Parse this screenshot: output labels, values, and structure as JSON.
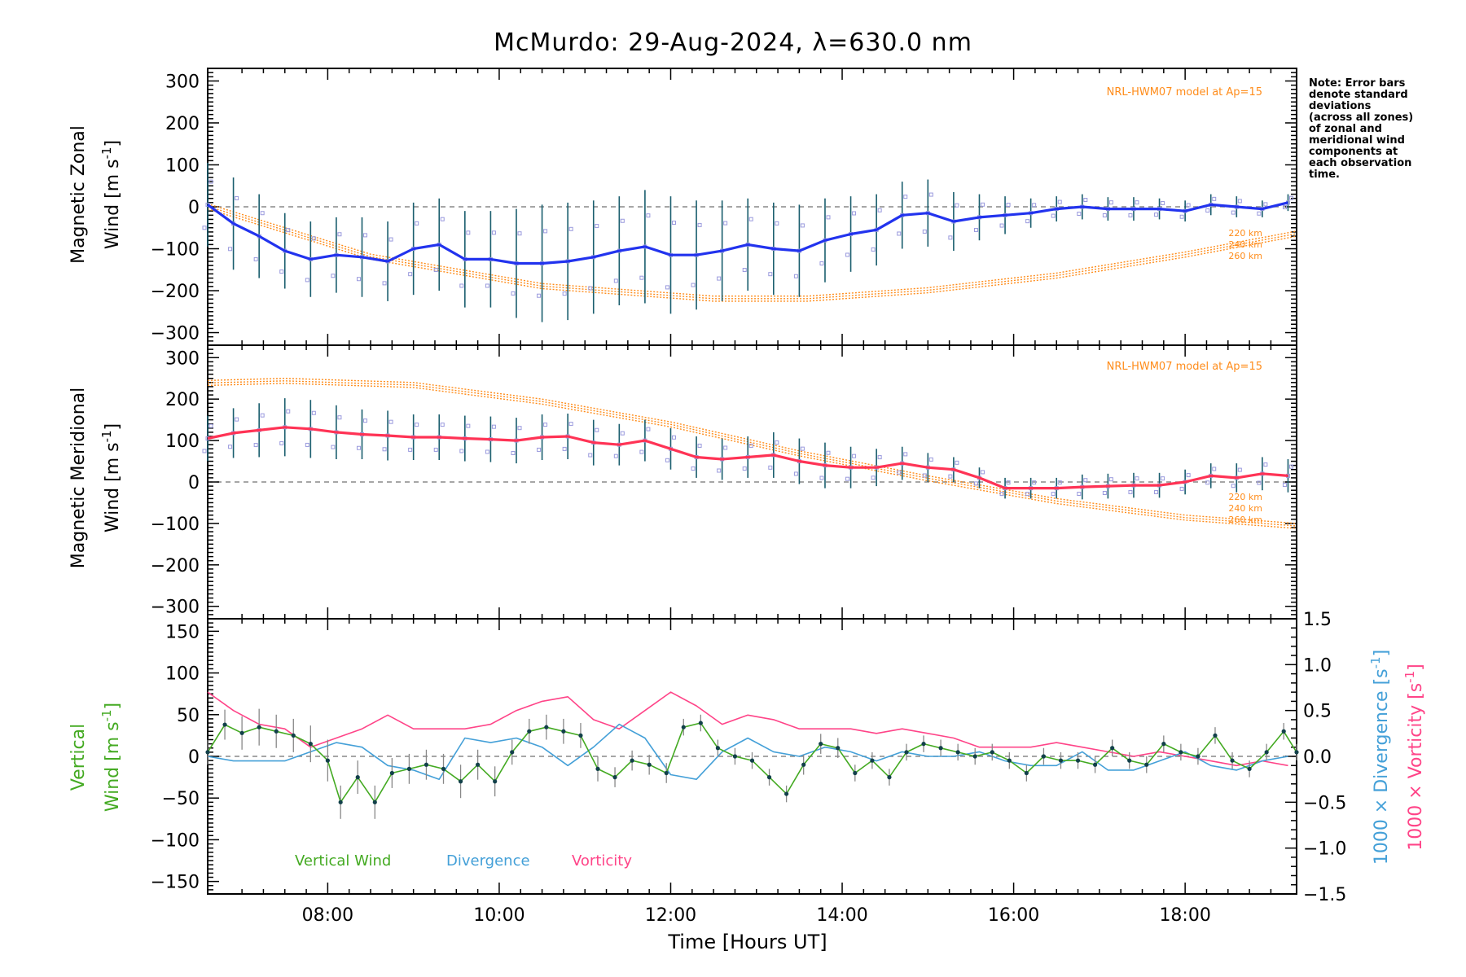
{
  "title": "McMurdo: 29-Aug-2024, λ=630.0 nm",
  "note": [
    "Note: Error bars",
    "denote standard",
    "deviations",
    "(across all zones)",
    "of zonal and",
    "meridional wind",
    "components at",
    "each observation",
    "time."
  ],
  "xaxis": {
    "label": "Time [Hours UT]",
    "range": [
      6.6,
      19.3
    ],
    "ticks": [
      8,
      10,
      12,
      14,
      16,
      18
    ],
    "tick_labels": [
      "08:00",
      "10:00",
      "12:00",
      "14:00",
      "16:00",
      "18:00"
    ]
  },
  "colors": {
    "zonal": "#2233ee",
    "meridional": "#ff3355",
    "vertical": "#44aa22",
    "divergence": "#44a0d8",
    "vorticity": "#ff4488",
    "model": "#ff8c1a",
    "error_bar": "#1a5e6e",
    "zone_scatter": "#9999dd"
  },
  "panels": {
    "zonal": {
      "ylabel_line1": "Magnetic Zonal",
      "ylabel_line2": "Wind [m s",
      "ylabel_sup": "-1",
      "ylabel_end": "]",
      "yrange": [
        -330,
        330
      ],
      "yticks": [
        -300,
        -200,
        -100,
        0,
        100,
        200,
        300
      ],
      "model_label": "NRL-HWM07 model at Ap=15",
      "alt_labels": [
        "220 km",
        "240 km",
        "260 km"
      ]
    },
    "meridional": {
      "ylabel_line1": "Magnetic Meridional",
      "ylabel_line2": "Wind [m s",
      "ylabel_sup": "-1",
      "ylabel_end": "]",
      "yrange": [
        -330,
        330
      ],
      "yticks": [
        -300,
        -200,
        -100,
        0,
        100,
        200,
        300
      ],
      "model_label": "NRL-HWM07 model at Ap=15",
      "alt_labels": [
        "220 km",
        "240 km",
        "260 km"
      ]
    },
    "vertical": {
      "ylabel_line1": "Vertical",
      "ylabel_line2": "Wind [m s",
      "ylabel_sup": "-1",
      "ylabel_end": "]",
      "yrange": [
        -165,
        165
      ],
      "yticks": [
        -150,
        -100,
        -50,
        0,
        50,
        100,
        150
      ],
      "y2range": [
        -1.5,
        1.5
      ],
      "y2ticks": [
        -1.5,
        -1.0,
        -0.5,
        0.0,
        0.5,
        1.0,
        1.5
      ],
      "y2label_div": "1000 × Divergence [s",
      "y2label_vor": "1000 × Vorticity [s",
      "y2label_sup": "-1",
      "y2label_end": "]",
      "legend": [
        "Vertical Wind",
        "Divergence",
        "Vorticity"
      ]
    }
  },
  "chart_data": {
    "type": "line",
    "title": "McMurdo: 29-Aug-2024, λ=630.0 nm",
    "xlabel": "Time [Hours UT]",
    "series": [
      {
        "name": "Magnetic Zonal Wind",
        "x": [
          6.6,
          6.9,
          7.2,
          7.5,
          7.8,
          8.1,
          8.4,
          8.7,
          9.0,
          9.3,
          9.6,
          9.9,
          10.2,
          10.5,
          10.8,
          11.1,
          11.4,
          11.7,
          12.0,
          12.3,
          12.6,
          12.9,
          13.2,
          13.5,
          13.8,
          14.1,
          14.4,
          14.7,
          15.0,
          15.3,
          15.6,
          15.9,
          16.2,
          16.5,
          16.8,
          17.1,
          17.4,
          17.7,
          18.0,
          18.3,
          18.6,
          18.9,
          19.2
        ],
        "y": [
          5,
          -40,
          -70,
          -105,
          -125,
          -115,
          -120,
          -130,
          -100,
          -90,
          -125,
          -125,
          -135,
          -135,
          -130,
          -120,
          -105,
          -95,
          -115,
          -115,
          -105,
          -90,
          -100,
          -105,
          -80,
          -65,
          -55,
          -20,
          -15,
          -35,
          -25,
          -20,
          -15,
          -5,
          0,
          -5,
          -5,
          -5,
          -10,
          5,
          0,
          -5,
          10
        ],
        "error": [
          100,
          110,
          100,
          90,
          90,
          90,
          95,
          95,
          110,
          110,
          115,
          115,
          130,
          140,
          140,
          135,
          130,
          135,
          140,
          130,
          120,
          110,
          110,
          110,
          100,
          90,
          85,
          80,
          80,
          70,
          55,
          45,
          35,
          30,
          30,
          28,
          28,
          25,
          25,
          25,
          25,
          20,
          20
        ]
      },
      {
        "name": "Magnetic Meridional Wind",
        "x": [
          6.6,
          6.9,
          7.2,
          7.5,
          7.8,
          8.1,
          8.4,
          8.7,
          9.0,
          9.3,
          9.6,
          9.9,
          10.2,
          10.5,
          10.8,
          11.1,
          11.4,
          11.7,
          12.0,
          12.3,
          12.6,
          12.9,
          13.2,
          13.5,
          13.8,
          14.1,
          14.4,
          14.7,
          15.0,
          15.3,
          15.6,
          15.9,
          16.2,
          16.5,
          16.8,
          17.1,
          17.4,
          17.7,
          18.0,
          18.3,
          18.6,
          18.9,
          19.2
        ],
        "y": [
          105,
          118,
          125,
          132,
          128,
          120,
          115,
          112,
          108,
          108,
          105,
          103,
          100,
          108,
          110,
          95,
          90,
          100,
          80,
          60,
          55,
          60,
          65,
          50,
          40,
          35,
          35,
          45,
          35,
          30,
          10,
          -15,
          -15,
          -15,
          -12,
          -10,
          -8,
          -8,
          0,
          15,
          10,
          20,
          15
        ],
        "error": [
          55,
          60,
          65,
          70,
          70,
          65,
          60,
          60,
          55,
          55,
          55,
          55,
          55,
          55,
          55,
          55,
          50,
          50,
          50,
          50,
          50,
          50,
          55,
          55,
          55,
          50,
          45,
          40,
          35,
          30,
          25,
          25,
          25,
          25,
          30,
          30,
          30,
          30,
          30,
          30,
          35,
          40,
          40
        ]
      },
      {
        "name": "Vertical Wind",
        "x": [
          6.6,
          6.8,
          7.0,
          7.2,
          7.4,
          7.6,
          7.8,
          8.0,
          8.15,
          8.35,
          8.55,
          8.75,
          8.95,
          9.15,
          9.35,
          9.55,
          9.75,
          9.95,
          10.15,
          10.35,
          10.55,
          10.75,
          10.95,
          11.15,
          11.35,
          11.55,
          11.75,
          11.95,
          12.15,
          12.35,
          12.55,
          12.75,
          12.95,
          13.15,
          13.35,
          13.55,
          13.75,
          13.95,
          14.15,
          14.35,
          14.55,
          14.75,
          14.95,
          15.15,
          15.35,
          15.55,
          15.75,
          15.95,
          16.15,
          16.35,
          16.55,
          16.75,
          16.95,
          17.15,
          17.35,
          17.55,
          17.75,
          17.95,
          18.15,
          18.35,
          18.55,
          18.75,
          18.95,
          19.15,
          19.3
        ],
        "y": [
          5,
          38,
          28,
          35,
          30,
          25,
          15,
          -5,
          -55,
          -25,
          -55,
          -20,
          -15,
          -10,
          -15,
          -30,
          -10,
          -30,
          5,
          30,
          35,
          30,
          25,
          -15,
          -25,
          -5,
          -10,
          -20,
          35,
          40,
          10,
          0,
          -5,
          -25,
          -45,
          -10,
          15,
          10,
          -20,
          -5,
          -25,
          5,
          15,
          10,
          5,
          0,
          5,
          -5,
          -20,
          0,
          -5,
          -5,
          -10,
          10,
          -5,
          -10,
          15,
          5,
          0,
          25,
          -5,
          -15,
          5,
          30,
          5
        ],
        "error": [
          15,
          18,
          20,
          22,
          20,
          20,
          22,
          25,
          20,
          20,
          20,
          18,
          18,
          18,
          18,
          20,
          18,
          18,
          15,
          15,
          15,
          15,
          15,
          15,
          12,
          12,
          12,
          12,
          10,
          10,
          10,
          10,
          10,
          10,
          10,
          12,
          12,
          12,
          10,
          10,
          10,
          10,
          10,
          10,
          10,
          10,
          10,
          10,
          10,
          10,
          10,
          10,
          10,
          10,
          10,
          10,
          10,
          10,
          10,
          10,
          10,
          10,
          10,
          10,
          10
        ]
      },
      {
        "name": "Divergence",
        "x": [
          6.6,
          6.9,
          7.2,
          7.5,
          7.8,
          8.1,
          8.4,
          8.7,
          9.0,
          9.3,
          9.6,
          9.9,
          10.2,
          10.5,
          10.8,
          11.1,
          11.4,
          11.7,
          12.0,
          12.3,
          12.6,
          12.9,
          13.2,
          13.5,
          13.8,
          14.1,
          14.4,
          14.7,
          15.0,
          15.3,
          15.6,
          15.9,
          16.2,
          16.5,
          16.8,
          17.1,
          17.4,
          17.7,
          18.0,
          18.3,
          18.6,
          18.9,
          19.2
        ],
        "y": [
          0.0,
          -0.05,
          -0.05,
          -0.05,
          0.05,
          0.15,
          0.1,
          -0.1,
          -0.15,
          -0.25,
          0.2,
          0.15,
          0.2,
          0.1,
          -0.1,
          0.1,
          0.35,
          0.2,
          -0.2,
          -0.25,
          0.05,
          0.2,
          0.05,
          0.0,
          0.1,
          0.05,
          -0.05,
          0.05,
          0.0,
          0.0,
          0.05,
          -0.05,
          -0.1,
          -0.1,
          0.05,
          -0.15,
          -0.15,
          -0.05,
          0.05,
          -0.1,
          -0.15,
          -0.05,
          0.0
        ],
        "y_units": "1000 × s^-1"
      },
      {
        "name": "Vorticity",
        "x": [
          6.6,
          6.9,
          7.2,
          7.5,
          7.8,
          8.1,
          8.4,
          8.7,
          9.0,
          9.3,
          9.6,
          9.9,
          10.2,
          10.5,
          10.8,
          11.1,
          11.4,
          11.7,
          12.0,
          12.3,
          12.6,
          12.9,
          13.2,
          13.5,
          13.8,
          14.1,
          14.4,
          14.7,
          15.0,
          15.3,
          15.6,
          15.9,
          16.2,
          16.5,
          16.8,
          17.1,
          17.4,
          17.7,
          18.0,
          18.3,
          18.6,
          18.9,
          19.2
        ],
        "y": [
          0.7,
          0.5,
          0.35,
          0.3,
          0.1,
          0.2,
          0.3,
          0.45,
          0.3,
          0.3,
          0.3,
          0.35,
          0.5,
          0.6,
          0.65,
          0.4,
          0.3,
          0.5,
          0.7,
          0.55,
          0.35,
          0.45,
          0.4,
          0.3,
          0.3,
          0.3,
          0.25,
          0.3,
          0.25,
          0.2,
          0.1,
          0.1,
          0.1,
          0.15,
          0.1,
          0.05,
          0.0,
          0.05,
          0.0,
          -0.05,
          -0.1,
          -0.05,
          -0.1
        ],
        "y_units": "1000 × s^-1"
      }
    ],
    "model": {
      "name": "NRL-HWM07 model at Ap=15",
      "zonal": {
        "x": [
          6.6,
          8.5,
          10.5,
          12.5,
          13.6,
          15.0,
          16.5,
          18.0,
          19.3
        ],
        "y": [
          -5,
          -125,
          -195,
          -225,
          -225,
          -205,
          -170,
          -120,
          -70
        ]
      },
      "meridional": {
        "x": [
          6.6,
          7.5,
          9.0,
          10.5,
          12.0,
          13.5,
          15.0,
          16.5,
          18.0,
          19.3
        ],
        "y": [
          245,
          250,
          240,
          200,
          145,
          75,
          15,
          -40,
          -80,
          -100
        ]
      }
    }
  }
}
